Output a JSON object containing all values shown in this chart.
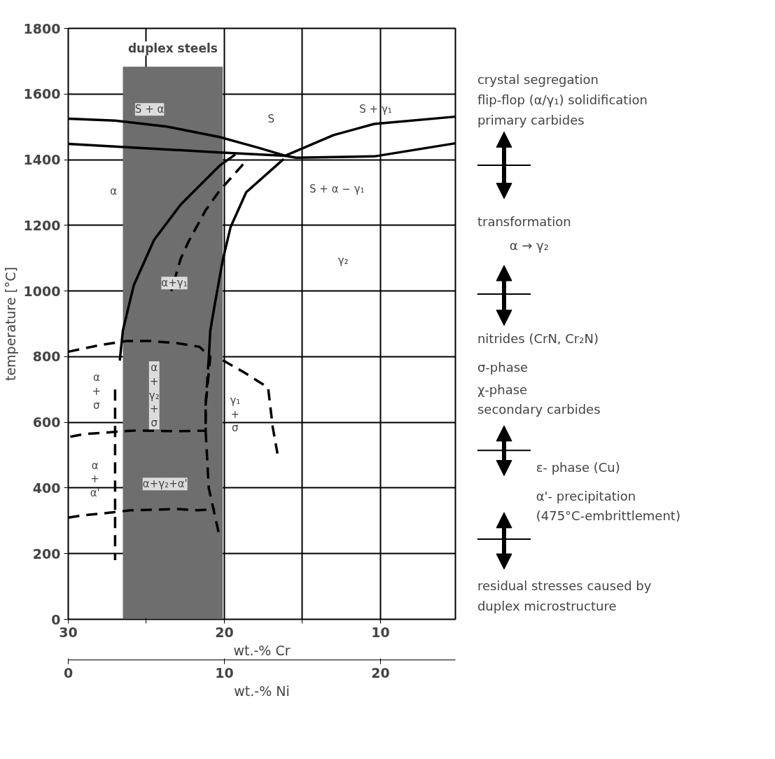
{
  "chart_data": {
    "type": "line",
    "ylabel": "temperature [°C]",
    "xlabel": "wt.-% Cr",
    "x2label": "wt.-% Ni",
    "xlim": [
      30,
      5.2
    ],
    "xticks": [
      30,
      {
        "value": 25,
        "label": null
      },
      20,
      {
        "value": 15,
        "label": null
      },
      10
    ],
    "x2lim": [
      0,
      24.8
    ],
    "x2ticks": [
      0,
      10,
      20
    ],
    "ylim": [
      0,
      1800
    ],
    "yticks": [
      0,
      200,
      400,
      600,
      800,
      1000,
      1200,
      1400,
      1600,
      1800
    ],
    "grid": true,
    "marker": "none",
    "series": [
      {
        "color": "#000000",
        "line_style": "solid",
        "x": [
          30,
          27,
          23.7,
          20.3,
          17.8,
          16.1,
          15.4,
          10.4,
          5.2
        ],
        "values": [
          1525,
          1519,
          1501,
          1469,
          1436,
          1412,
          1406,
          1410,
          1450
        ]
      },
      {
        "color": "#000000",
        "line_style": "solid",
        "x": [
          30,
          20.3,
          16.1,
          13,
          10.4,
          5.2
        ],
        "values": [
          1448,
          1422,
          1412,
          1475,
          1509,
          1531
        ]
      },
      {
        "color": "#000000",
        "line_style": "solid",
        "x": [
          19.3,
          20.3,
          22.8,
          24.5,
          25.8,
          26.5,
          26.7
        ],
        "values": [
          1416,
          1382,
          1263,
          1156,
          1018,
          880,
          788
        ]
      },
      {
        "color": "#000000",
        "line_style": "solid",
        "x": [
          16.2,
          18.6,
          19.6,
          20.1,
          20.6,
          20.9,
          21.0
        ],
        "values": [
          1402,
          1301,
          1195,
          1095,
          963,
          880,
          795
        ]
      },
      {
        "color": "#000000",
        "line_style": "dashed",
        "x": [
          21.0,
          21.2,
          21.2,
          21.0,
          20.3
        ],
        "values": [
          795,
          653,
          575,
          400,
          250
        ]
      },
      {
        "color": "#000000",
        "line_style": "dashed",
        "x": [
          30,
          29.1,
          27.9,
          26.2,
          24.8,
          23,
          21.6,
          20.9,
          21.2,
          21.2,
          22.8,
          25.8,
          29,
          30
        ],
        "values": [
          815,
          824,
          836,
          848,
          848,
          841,
          830,
          800,
          653,
          575,
          573,
          575,
          564,
          555
        ]
      },
      {
        "color": "#000000",
        "line_style": "dashed",
        "x": [
          20.1,
          18.8,
          17.2,
          16.9,
          16.6
        ],
        "values": [
          789,
          754,
          706,
          585,
          505
        ]
      },
      {
        "color": "#000000",
        "line_style": "dashed",
        "x": [
          18.8,
          20.3,
          21.2,
          22.3,
          22.8,
          23.4
        ],
        "values": [
          1386,
          1306,
          1246,
          1150,
          1098,
          1000
        ]
      },
      {
        "color": "#000000",
        "line_style": "dashed",
        "x": [
          27,
          27
        ],
        "values": [
          700,
          180
        ]
      },
      {
        "color": "#000000",
        "line_style": "dashed",
        "x": [
          30,
          29,
          27.9,
          26,
          23,
          21.7,
          20.6
        ],
        "values": [
          310,
          317,
          322,
          332,
          336,
          332,
          336
        ]
      }
    ],
    "bands": [
      {
        "axis": "x",
        "from": 26.5,
        "to": 20.1,
        "label": "duplex steels",
        "color": "#6e6e6e"
      }
    ],
    "annotations": [
      "S + α",
      "S",
      "S + γ₁",
      "α",
      "S + α − γ₁",
      "γ₂",
      "α+γ₁",
      "α\n+\nσ",
      "α\n+\nγ₂\n+\nσ",
      "γ₁\n+\nσ",
      "α\n+\nα'",
      "α+γ₂+α'",
      "crystal segregation",
      "flip-flop (α/γ₁) solidification",
      "primary carbides",
      "transformation",
      "α → γ₂",
      "nitrides (CrN, Cr₂N)",
      "σ-phase",
      "χ-phase",
      "secondary carbides",
      "ε- phase (Cu)",
      "α'- precipitation",
      "(475°C-embrittlement)",
      "residual stresses caused by",
      "duplex microstructure"
    ]
  }
}
